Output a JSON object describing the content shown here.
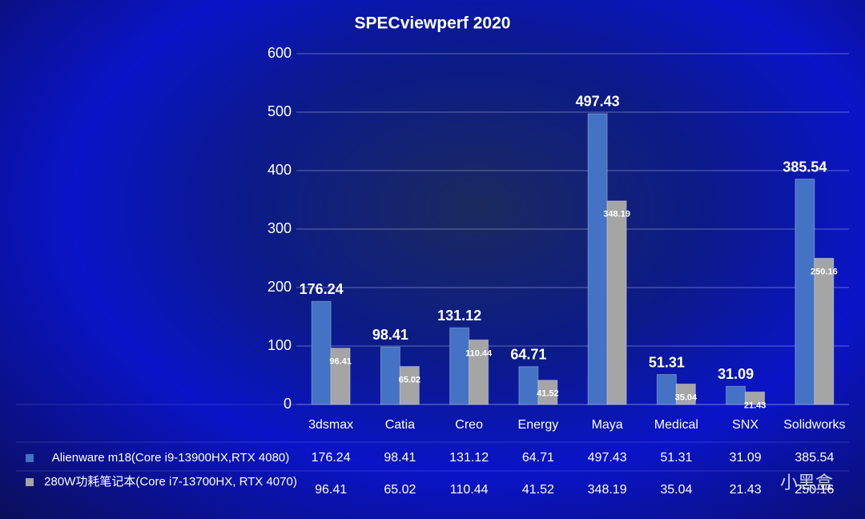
{
  "chart_data": {
    "type": "bar",
    "title": "SPECviewperf 2020",
    "categories": [
      "3dsmax",
      "Catia",
      "Creo",
      "Energy",
      "Maya",
      "Medical",
      "SNX",
      "Solidworks"
    ],
    "series": [
      {
        "name": "Alienware m18(Core i9-13900HX,RTX 4080)",
        "color": "#4472c4",
        "values": [
          176.24,
          98.41,
          131.12,
          64.71,
          497.43,
          51.31,
          31.09,
          385.54
        ]
      },
      {
        "name": "280W功耗笔记本(Core i7-13700HX, RTX 4070)",
        "color": "#a5a5a5",
        "values": [
          96.41,
          65.02,
          110.44,
          41.52,
          348.19,
          35.04,
          21.43,
          250.16
        ]
      }
    ],
    "ylim": [
      0,
      600
    ],
    "yticks": [
      0,
      100,
      200,
      300,
      400,
      500,
      600
    ],
    "grid": true,
    "watermark": "小黑盒"
  }
}
